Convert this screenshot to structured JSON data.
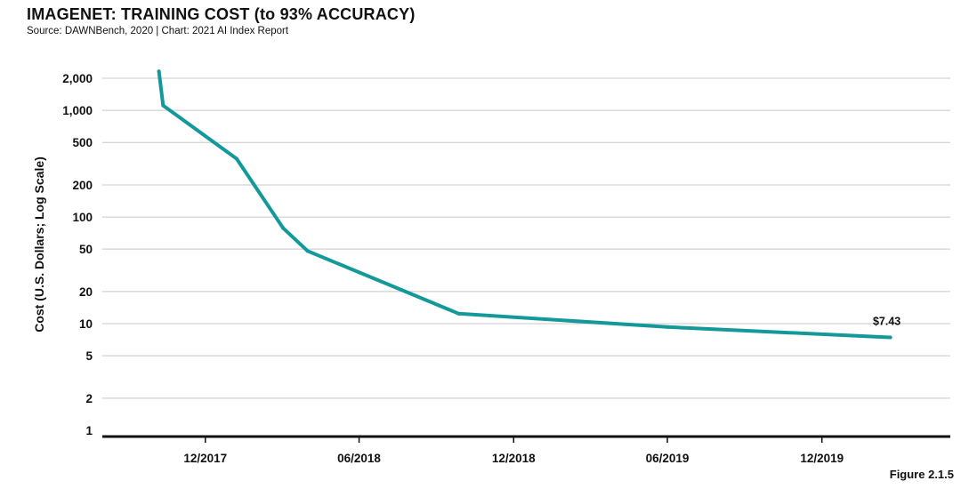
{
  "title": "IMAGENET: TRAINING COST (to 93% ACCURACY)",
  "subtitle": "Source: DAWNBench, 2020 | Chart: 2021 AI Index Report",
  "figure_label": "Figure 2.1.5",
  "colors": {
    "line": "#14999a",
    "grid": "#c8c8c8",
    "axis": "#111111"
  },
  "chart_data": {
    "type": "line",
    "title": "IMAGENET: TRAINING COST (to 93% ACCURACY)",
    "xlabel": "",
    "ylabel": "Cost (U.S. Dollars; Log Scale)",
    "y_scale": "log",
    "ylim": [
      1,
      2600
    ],
    "y_ticks": [
      1,
      2,
      5,
      10,
      20,
      50,
      100,
      200,
      500,
      1000,
      2000
    ],
    "y_tick_labels": [
      "1",
      "2",
      "5",
      "10",
      "20",
      "50",
      "100",
      "200",
      "500",
      "1,000",
      "2,000"
    ],
    "x_ticks": [
      "2017-12-01",
      "2018-06-01",
      "2018-12-01",
      "2019-06-01",
      "2019-12-01"
    ],
    "x_tick_labels": [
      "12/2017",
      "06/2018",
      "12/2018",
      "06/2019",
      "12/2019"
    ],
    "xlim": [
      "2017-08-01",
      "2020-05-01"
    ],
    "grid": true,
    "series": [
      {
        "values": [
          {
            "x": "2017-10-07",
            "y": 2323
          },
          {
            "x": "2017-10-12",
            "y": 1112
          },
          {
            "x": "2018-01-07",
            "y": 352
          },
          {
            "x": "2018-03-03",
            "y": 79
          },
          {
            "x": "2018-04-01",
            "y": 48
          },
          {
            "x": "2018-09-27",
            "y": 12.4
          },
          {
            "x": "2019-06-01",
            "y": 9.3
          },
          {
            "x": "2020-02-20",
            "y": 7.43
          }
        ]
      }
    ],
    "annotations": [
      {
        "x": "2020-02-20",
        "y": 7.43,
        "text": "$7.43"
      }
    ]
  }
}
